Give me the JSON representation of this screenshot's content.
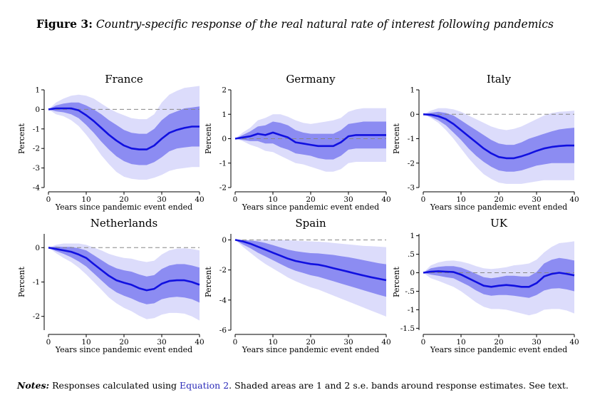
{
  "figure": {
    "label": "Figure 3:",
    "caption": "Country-specific response of the real natural rate of interest following pandemics"
  },
  "notes": {
    "label": "Notes:",
    "text_before": "Responses calculated using",
    "link": "Equation 2",
    "text_after": ". Shaded areas are 1 and 2 s.e. bands around response estimates. See text."
  },
  "colors": {
    "line": "#1010e0",
    "band_inner": "#8c8cf2",
    "band_outer": "#dcdcfb",
    "zero_line": "#888888"
  },
  "chart_data": [
    {
      "type": "line",
      "title": "France",
      "xlabel": "Years since pandemic event ended",
      "ylabel": "Percent",
      "xlim": [
        0,
        40
      ],
      "ylim": [
        -4,
        1
      ],
      "xticks": [
        0,
        10,
        20,
        30,
        40
      ],
      "yticks": [
        -4,
        -3,
        -2,
        -1,
        0,
        1
      ],
      "ytick_labels": [
        "-4",
        "-3",
        "-2",
        "-1",
        "0",
        "1"
      ],
      "x": [
        0,
        2,
        4,
        6,
        8,
        10,
        12,
        14,
        16,
        18,
        20,
        22,
        24,
        26,
        28,
        30,
        32,
        34,
        36,
        38,
        40
      ],
      "y": [
        0,
        0.05,
        0.05,
        0.05,
        -0.05,
        -0.3,
        -0.6,
        -0.95,
        -1.3,
        -1.6,
        -1.85,
        -2.0,
        -2.05,
        -2.05,
        -1.85,
        -1.5,
        -1.2,
        -1.05,
        -0.95,
        -0.88,
        -0.88
      ],
      "band1_lower": [
        0,
        -0.1,
        -0.15,
        -0.25,
        -0.45,
        -0.8,
        -1.2,
        -1.65,
        -2.05,
        -2.4,
        -2.65,
        -2.8,
        -2.85,
        -2.85,
        -2.7,
        -2.45,
        -2.15,
        -2.0,
        -1.95,
        -1.9,
        -1.9
      ],
      "band1_upper": [
        0,
        0.2,
        0.3,
        0.35,
        0.35,
        0.2,
        0.0,
        -0.25,
        -0.55,
        -0.8,
        -1.05,
        -1.2,
        -1.25,
        -1.25,
        -1.0,
        -0.55,
        -0.25,
        -0.1,
        0.05,
        0.1,
        0.15
      ],
      "band2_lower": [
        0,
        -0.25,
        -0.35,
        -0.55,
        -0.85,
        -1.3,
        -1.8,
        -2.35,
        -2.8,
        -3.2,
        -3.45,
        -3.55,
        -3.6,
        -3.6,
        -3.5,
        -3.35,
        -3.15,
        -3.05,
        -3.0,
        -2.95,
        -2.95
      ],
      "band2_upper": [
        0,
        0.35,
        0.55,
        0.7,
        0.75,
        0.7,
        0.55,
        0.3,
        0.05,
        -0.15,
        -0.3,
        -0.45,
        -0.5,
        -0.5,
        -0.25,
        0.35,
        0.75,
        0.95,
        1.1,
        1.15,
        1.2
      ]
    },
    {
      "type": "line",
      "title": "Germany",
      "xlabel": "Years since pandemic event ended",
      "ylabel": "Percent",
      "xlim": [
        0,
        40
      ],
      "ylim": [
        -2,
        2
      ],
      "xticks": [
        0,
        10,
        20,
        30,
        40
      ],
      "yticks": [
        -2,
        -1,
        0,
        1,
        2
      ],
      "ytick_labels": [
        "-2",
        "-1",
        "0",
        "1",
        "2"
      ],
      "x": [
        0,
        2,
        4,
        6,
        8,
        10,
        12,
        14,
        16,
        18,
        20,
        22,
        24,
        26,
        28,
        30,
        32,
        34,
        36,
        38,
        40
      ],
      "y": [
        0,
        0.05,
        0.1,
        0.2,
        0.15,
        0.25,
        0.15,
        0.05,
        -0.15,
        -0.2,
        -0.25,
        -0.3,
        -0.3,
        -0.3,
        -0.15,
        0.1,
        0.15,
        0.15,
        0.15,
        0.15,
        0.15
      ],
      "band1_lower": [
        0,
        -0.05,
        -0.1,
        -0.1,
        -0.2,
        -0.2,
        -0.35,
        -0.45,
        -0.6,
        -0.65,
        -0.7,
        -0.8,
        -0.85,
        -0.85,
        -0.7,
        -0.45,
        -0.4,
        -0.4,
        -0.4,
        -0.4,
        -0.4
      ],
      "band1_upper": [
        0,
        0.15,
        0.3,
        0.5,
        0.55,
        0.7,
        0.65,
        0.55,
        0.35,
        0.25,
        0.2,
        0.2,
        0.2,
        0.2,
        0.35,
        0.6,
        0.65,
        0.7,
        0.7,
        0.7,
        0.7
      ],
      "band2_lower": [
        0,
        -0.1,
        -0.25,
        -0.35,
        -0.5,
        -0.55,
        -0.7,
        -0.85,
        -1.0,
        -1.05,
        -1.15,
        -1.25,
        -1.35,
        -1.35,
        -1.25,
        -1.0,
        -0.95,
        -0.95,
        -0.95,
        -0.95,
        -0.95
      ],
      "band2_upper": [
        0,
        0.25,
        0.45,
        0.75,
        0.85,
        1.0,
        1.0,
        0.9,
        0.75,
        0.65,
        0.6,
        0.65,
        0.7,
        0.75,
        0.85,
        1.1,
        1.2,
        1.25,
        1.25,
        1.25,
        1.25
      ]
    },
    {
      "type": "line",
      "title": "Italy",
      "xlabel": "Years since pandemic event ended",
      "ylabel": "Percent",
      "xlim": [
        0,
        40
      ],
      "ylim": [
        -3,
        1
      ],
      "xticks": [
        0,
        10,
        20,
        30,
        40
      ],
      "yticks": [
        -3,
        -2,
        -1,
        0,
        1
      ],
      "ytick_labels": [
        "-3",
        "-2",
        "-1",
        "0",
        "1"
      ],
      "x": [
        0,
        2,
        4,
        6,
        8,
        10,
        12,
        14,
        16,
        18,
        20,
        22,
        24,
        26,
        28,
        30,
        32,
        34,
        36,
        38,
        40
      ],
      "y": [
        0,
        -0.02,
        -0.08,
        -0.2,
        -0.4,
        -0.65,
        -0.9,
        -1.15,
        -1.4,
        -1.6,
        -1.75,
        -1.8,
        -1.8,
        -1.72,
        -1.62,
        -1.5,
        -1.4,
        -1.34,
        -1.3,
        -1.28,
        -1.28
      ],
      "band1_lower": [
        0,
        -0.1,
        -0.25,
        -0.45,
        -0.75,
        -1.05,
        -1.4,
        -1.7,
        -1.95,
        -2.15,
        -2.3,
        -2.35,
        -2.35,
        -2.3,
        -2.2,
        -2.1,
        -2.05,
        -2.0,
        -2.0,
        -2.0,
        -2.0
      ],
      "band1_upper": [
        0,
        0.06,
        0.1,
        0.05,
        -0.05,
        -0.25,
        -0.45,
        -0.65,
        -0.85,
        -1.05,
        -1.2,
        -1.25,
        -1.25,
        -1.15,
        -1.0,
        -0.9,
        -0.8,
        -0.7,
        -0.62,
        -0.58,
        -0.55
      ],
      "band2_lower": [
        0,
        -0.15,
        -0.35,
        -0.65,
        -1.0,
        -1.4,
        -1.8,
        -2.15,
        -2.45,
        -2.65,
        -2.8,
        -2.85,
        -2.85,
        -2.85,
        -2.8,
        -2.75,
        -2.7,
        -2.7,
        -2.7,
        -2.7,
        -2.7
      ],
      "band2_upper": [
        0,
        0.15,
        0.25,
        0.25,
        0.2,
        0.1,
        -0.05,
        -0.2,
        -0.35,
        -0.5,
        -0.6,
        -0.65,
        -0.6,
        -0.5,
        -0.35,
        -0.2,
        -0.05,
        0.05,
        0.1,
        0.12,
        0.15
      ]
    },
    {
      "type": "line",
      "title": "Netherlands",
      "xlabel": "Years since pandemic event ended",
      "ylabel": "Percent",
      "xlim": [
        0,
        40
      ],
      "ylim": [
        -2.4,
        0.4
      ],
      "xticks": [
        0,
        10,
        20,
        30,
        40
      ],
      "yticks": [
        -2,
        -1,
        0
      ],
      "ytick_labels": [
        "-2",
        "-1",
        "0"
      ],
      "x": [
        0,
        2,
        4,
        6,
        8,
        10,
        12,
        14,
        16,
        18,
        20,
        22,
        24,
        26,
        28,
        30,
        32,
        34,
        36,
        38,
        40
      ],
      "y": [
        0,
        -0.04,
        -0.08,
        -0.12,
        -0.2,
        -0.3,
        -0.48,
        -0.65,
        -0.82,
        -0.95,
        -1.02,
        -1.08,
        -1.18,
        -1.24,
        -1.2,
        -1.05,
        -0.97,
        -0.95,
        -0.95,
        -1.0,
        -1.08
      ],
      "band1_lower": [
        0,
        -0.1,
        -0.18,
        -0.28,
        -0.4,
        -0.55,
        -0.75,
        -0.95,
        -1.15,
        -1.3,
        -1.4,
        -1.48,
        -1.58,
        -1.65,
        -1.62,
        -1.5,
        -1.45,
        -1.43,
        -1.45,
        -1.5,
        -1.6
      ],
      "band1_upper": [
        0,
        0.03,
        0.02,
        0.02,
        -0.02,
        -0.08,
        -0.22,
        -0.36,
        -0.5,
        -0.6,
        -0.66,
        -0.7,
        -0.78,
        -0.84,
        -0.8,
        -0.62,
        -0.52,
        -0.48,
        -0.48,
        -0.52,
        -0.58
      ],
      "band2_lower": [
        0,
        -0.16,
        -0.3,
        -0.42,
        -0.58,
        -0.78,
        -1.0,
        -1.22,
        -1.45,
        -1.62,
        -1.75,
        -1.85,
        -1.98,
        -2.08,
        -2.05,
        -1.95,
        -1.9,
        -1.9,
        -1.92,
        -2.0,
        -2.12
      ],
      "band2_upper": [
        0,
        0.08,
        0.12,
        0.12,
        0.12,
        0.08,
        0.0,
        -0.08,
        -0.18,
        -0.25,
        -0.3,
        -0.32,
        -0.38,
        -0.42,
        -0.38,
        -0.2,
        -0.08,
        -0.03,
        -0.02,
        -0.04,
        -0.08
      ]
    },
    {
      "type": "line",
      "title": "Spain",
      "xlabel": "Years since pandemic event ended",
      "ylabel": "Percent",
      "xlim": [
        0,
        40
      ],
      "ylim": [
        -6,
        0.4
      ],
      "xticks": [
        0,
        10,
        20,
        30,
        40
      ],
      "yticks": [
        -6,
        -4,
        -2,
        0
      ],
      "ytick_labels": [
        "-6",
        "-4",
        "-2",
        "0"
      ],
      "x": [
        0,
        2,
        4,
        6,
        8,
        10,
        12,
        14,
        16,
        18,
        20,
        22,
        24,
        26,
        28,
        30,
        32,
        34,
        36,
        38,
        40
      ],
      "y": [
        0,
        -0.1,
        -0.25,
        -0.45,
        -0.65,
        -0.85,
        -1.05,
        -1.25,
        -1.4,
        -1.5,
        -1.6,
        -1.65,
        -1.75,
        -1.88,
        -2.0,
        -2.12,
        -2.25,
        -2.37,
        -2.48,
        -2.58,
        -2.68
      ],
      "band1_lower": [
        0,
        -0.3,
        -0.55,
        -0.85,
        -1.1,
        -1.35,
        -1.6,
        -1.85,
        -2.05,
        -2.2,
        -2.35,
        -2.45,
        -2.6,
        -2.75,
        -2.9,
        -3.05,
        -3.2,
        -3.35,
        -3.5,
        -3.65,
        -3.78
      ],
      "band1_upper": [
        0,
        0,
        -0.05,
        -0.1,
        -0.2,
        -0.35,
        -0.5,
        -0.65,
        -0.75,
        -0.82,
        -0.88,
        -0.9,
        -0.95,
        -1.0,
        -1.08,
        -1.15,
        -1.25,
        -1.35,
        -1.45,
        -1.55,
        -1.62
      ],
      "band2_lower": [
        0,
        -0.45,
        -0.85,
        -1.25,
        -1.6,
        -1.9,
        -2.2,
        -2.5,
        -2.75,
        -2.95,
        -3.15,
        -3.3,
        -3.5,
        -3.7,
        -3.9,
        -4.1,
        -4.3,
        -4.5,
        -4.7,
        -4.9,
        -5.1
      ],
      "band2_upper": [
        0,
        0,
        0,
        0,
        0,
        0,
        0,
        -0.02,
        -0.05,
        -0.08,
        -0.1,
        -0.12,
        -0.15,
        -0.2,
        -0.25,
        -0.3,
        -0.35,
        -0.4,
        -0.42,
        -0.45,
        -0.48
      ]
    },
    {
      "type": "line",
      "title": "UK",
      "xlabel": "Years since pandemic event ended",
      "ylabel": "Percent",
      "xlim": [
        0,
        40
      ],
      "ylim": [
        -1.55,
        1.05
      ],
      "xticks": [
        0,
        10,
        20,
        30,
        40
      ],
      "yticks": [
        -1.5,
        -1,
        -0.5,
        0,
        0.5,
        1
      ],
      "ytick_labels": [
        "-1.5",
        "-1",
        "-.5",
        "0",
        ".5",
        "1"
      ],
      "x": [
        0,
        2,
        4,
        6,
        8,
        10,
        12,
        14,
        16,
        18,
        20,
        22,
        24,
        26,
        28,
        30,
        32,
        34,
        36,
        38,
        40
      ],
      "y": [
        0,
        0.03,
        0.04,
        0.03,
        0.02,
        -0.05,
        -0.15,
        -0.25,
        -0.35,
        -0.38,
        -0.35,
        -0.33,
        -0.35,
        -0.38,
        -0.38,
        -0.28,
        -0.1,
        -0.03,
        0.0,
        -0.03,
        -0.07
      ],
      "band1_lower": [
        0,
        -0.05,
        -0.08,
        -0.12,
        -0.15,
        -0.25,
        -0.35,
        -0.48,
        -0.58,
        -0.62,
        -0.6,
        -0.6,
        -0.62,
        -0.65,
        -0.68,
        -0.6,
        -0.48,
        -0.43,
        -0.42,
        -0.45,
        -0.5
      ],
      "band1_upper": [
        0,
        0.12,
        0.16,
        0.18,
        0.18,
        0.14,
        0.06,
        -0.03,
        -0.12,
        -0.15,
        -0.12,
        -0.08,
        -0.08,
        -0.1,
        -0.1,
        0.02,
        0.25,
        0.35,
        0.4,
        0.37,
        0.33
      ],
      "band2_lower": [
        0,
        -0.15,
        -0.22,
        -0.3,
        -0.38,
        -0.5,
        -0.65,
        -0.8,
        -0.92,
        -0.98,
        -0.98,
        -1.0,
        -1.05,
        -1.1,
        -1.15,
        -1.1,
        -1.0,
        -0.98,
        -0.98,
        -1.02,
        -1.1
      ],
      "band2_upper": [
        0,
        0.2,
        0.28,
        0.32,
        0.33,
        0.3,
        0.25,
        0.18,
        0.12,
        0.1,
        0.12,
        0.15,
        0.2,
        0.22,
        0.25,
        0.35,
        0.55,
        0.7,
        0.8,
        0.82,
        0.85
      ]
    }
  ]
}
